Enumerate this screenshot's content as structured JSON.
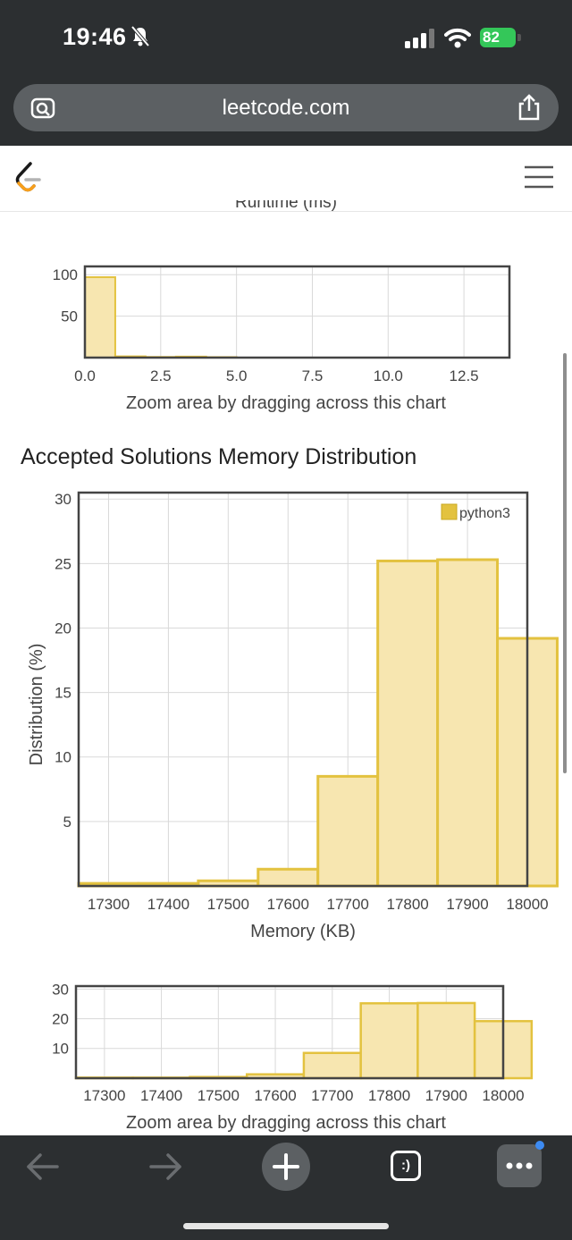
{
  "status_bar": {
    "time": "19:46",
    "battery": "82"
  },
  "browser": {
    "url": "leetcode.com"
  },
  "header": {
    "logo_icon": "leetcode-logo-icon",
    "menu_icon": "hamburger-menu-icon"
  },
  "runtime_section": {
    "partial_axis_label": "Runtime (ms)",
    "zoom_chart": {
      "type": "bar",
      "x": [
        0.5,
        1.5,
        2.5,
        3.5,
        4.5
      ],
      "values": [
        97,
        1.5,
        0.8,
        1.2,
        0.6
      ],
      "xticks": [
        "0.0",
        "2.5",
        "5.0",
        "7.5",
        "10.0",
        "12.5"
      ],
      "yticks": [
        "100",
        "50"
      ],
      "xlim": [
        0,
        14
      ],
      "ylim": [
        0,
        110
      ]
    },
    "zoom_hint": "Zoom area by dragging across this chart"
  },
  "memory_section": {
    "heading": "Accepted Solutions Memory Distribution",
    "chart_data": {
      "type": "bar",
      "title": "",
      "xlabel": "Memory (KB)",
      "ylabel": "Distribution (%)",
      "categories": [
        "17300",
        "17400",
        "17500",
        "17600",
        "17700",
        "17800",
        "17900",
        "18000"
      ],
      "bin_starts": [
        17250,
        17350,
        17450,
        17550,
        17650,
        17750,
        17850,
        17950
      ],
      "series": [
        {
          "name": "python3",
          "values": [
            0.2,
            0.2,
            0.4,
            1.3,
            8.5,
            25.2,
            25.3,
            19.2
          ]
        }
      ],
      "xticks": [
        "17300",
        "17400",
        "17500",
        "17600",
        "17700",
        "17800",
        "17900",
        "18000"
      ],
      "yticks": [
        "30",
        "25",
        "20",
        "15",
        "10",
        "5"
      ],
      "xlim": [
        17250,
        18000
      ],
      "ylim": [
        0,
        30.5
      ],
      "grid": true,
      "legend": "top-right",
      "color": "#e3c23f"
    },
    "zoom_chart": {
      "type": "bar",
      "yticks": [
        "30",
        "20",
        "10"
      ],
      "xticks": [
        "17300",
        "17400",
        "17500",
        "17600",
        "17700",
        "17800",
        "17900",
        "18000"
      ]
    },
    "zoom_hint": "Zoom area by dragging across this chart"
  },
  "toolbar": {
    "back_icon": "back-arrow-icon",
    "forward_icon": "forward-arrow-icon",
    "new_tab_icon": "plus-icon",
    "tabs_icon": "tabs-icon",
    "tabs_label": ":)",
    "more_icon": "more-icon"
  }
}
